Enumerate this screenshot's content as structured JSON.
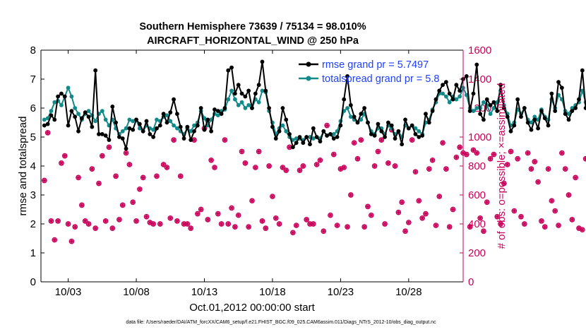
{
  "chart_data": {
    "type": "line",
    "title": "Southern Hemisphere 73639 / 75134 = 98.010%",
    "subtitle": "AIRCRAFT_HORIZONTAL_WIND @ 250 hPa",
    "xlabel": "Oct.01,2012 00:00:00 start",
    "ylabel": "rmse and totalspread",
    "y2label": "# of obs: o=possible; ×=assimilated",
    "footnote": "data file: /Users/raeder/DAI/ATM_forcXX/CAM6_setup/f.e21.FHIST_BGC.f09_025.CAM6assim.011/Diags_NTrS_2012-10/obs_diag_output.nc",
    "xlim": [
      1.0,
      32.0
    ],
    "ylim": [
      0,
      8
    ],
    "y2lim": [
      0,
      1600
    ],
    "x_ticks": [
      3,
      8,
      13,
      18,
      23,
      28
    ],
    "x_tick_labels": [
      "10/03",
      "10/08",
      "10/13",
      "10/18",
      "10/23",
      "10/28"
    ],
    "y_ticks": [
      0,
      1,
      2,
      3,
      4,
      5,
      6,
      7,
      8
    ],
    "y_tick_labels": [
      "0",
      "1",
      "2",
      "3",
      "4",
      "5",
      "6",
      "7",
      "8"
    ],
    "y2_ticks": [
      0,
      200,
      400,
      600,
      800,
      1000,
      1200,
      1400,
      1600
    ],
    "y2_tick_labels": [
      "0",
      "200",
      "400",
      "600",
      "800",
      "1000",
      "1200",
      "1400",
      "1600"
    ],
    "legend": {
      "placement": "top-right",
      "entries": [
        "rmse grand pr = 5.7497",
        "totalspread grand pr = 5.8"
      ]
    },
    "colors": {
      "rmse": "#000000",
      "totalspread": "#138a8a",
      "obs": "#c8005a",
      "legend_text": "#1f3fff"
    },
    "x_start": 1.25,
    "x_step": 0.25,
    "series": [
      {
        "name": "rmse",
        "values": [
          5.4,
          5.45,
          5.75,
          5.6,
          6.4,
          6.5,
          6.4,
          5.4,
          5.9,
          5.7,
          5.2,
          5.65,
          5.85,
          5.7,
          5.35,
          7.3,
          5.1,
          5.1,
          5.05,
          4.9,
          6.05,
          5.5,
          5.0,
          4.95,
          4.6,
          5.3,
          5.25,
          5.6,
          5.45,
          5.2,
          5.55,
          5.1,
          5.0,
          5.3,
          5.4,
          5.8,
          5.5,
          5.85,
          6.3,
          5.8,
          5.35,
          4.95,
          5.35,
          4.9,
          5.2,
          5.4,
          6.0,
          5.25,
          5.6,
          5.2,
          5.95,
          5.9,
          5.8,
          6.0,
          7.3,
          7.4,
          6.5,
          6.8,
          6.5,
          6.4,
          6.6,
          6.0,
          6.5,
          6.8,
          7.6,
          6.6,
          6.0,
          5.35,
          4.95,
          5.2,
          6.0,
          5.6,
          5.1,
          4.65,
          4.8,
          5.0,
          4.8,
          5.0,
          4.75,
          5.3,
          5.0,
          4.85,
          5.2,
          5.05,
          5.1,
          4.95,
          5.0,
          5.4,
          6.3,
          7.1,
          6.1,
          5.7,
          5.5,
          5.8,
          6.0,
          5.5,
          5.1,
          5.05,
          5.45,
          5.2,
          5.0,
          5.5,
          5.4,
          4.95,
          5.2,
          4.75,
          5.6,
          5.3,
          5.4,
          5.1,
          5.0,
          5.05,
          5.8,
          5.5,
          5.9,
          6.3,
          6.6,
          6.8,
          6.9,
          6.5,
          6.3,
          6.8,
          6.6,
          7.0,
          7.1,
          5.9,
          6.5,
          7.5,
          5.8,
          5.6,
          6.3,
          6.1,
          6.2,
          5.9,
          6.8,
          6.0,
          5.7,
          5.2,
          5.4,
          6.3,
          5.7,
          6.0,
          5.5,
          5.25,
          5.6,
          5.3,
          5.9,
          5.65,
          5.4,
          6.5,
          5.9,
          6.9,
          6.7,
          5.8,
          5.6,
          5.9,
          6.0,
          6.3,
          7.3,
          6.0,
          5.9,
          5.8,
          5.6,
          5.9,
          5.6,
          5.3,
          5.05,
          5.2,
          5.6,
          5.5,
          5.2,
          5.3,
          5.5,
          5.1,
          5.35,
          5.5,
          6.0,
          6.05,
          6.25
        ]
      },
      {
        "name": "totalspread",
        "values": [
          5.6,
          5.65,
          5.9,
          6.2,
          6.25,
          6.1,
          6.4,
          6.7,
          6.4,
          6.0,
          5.8,
          5.6,
          5.8,
          5.9,
          5.75,
          5.55,
          5.8,
          5.9,
          5.6,
          5.4,
          5.6,
          5.3,
          5.1,
          5.2,
          5.3,
          5.6,
          5.55,
          5.6,
          5.3,
          5.2,
          5.4,
          5.3,
          5.25,
          5.6,
          5.55,
          5.7,
          5.75,
          5.55,
          5.4,
          5.3,
          5.2,
          5.1,
          5.3,
          5.2,
          5.4,
          5.5,
          5.9,
          5.65,
          5.4,
          5.6,
          5.8,
          5.75,
          5.9,
          5.95,
          6.3,
          6.6,
          6.3,
          6.1,
          6.2,
          6.0,
          6.1,
          6.0,
          6.3,
          6.2,
          6.6,
          6.55,
          5.9,
          5.5,
          5.1,
          5.3,
          5.4,
          5.2,
          5.0,
          4.9,
          4.95,
          4.95,
          4.9,
          5.0,
          5.0,
          4.95,
          5.0,
          4.95,
          5.2,
          5.05,
          5.1,
          5.1,
          5.2,
          5.55,
          5.9,
          6.0,
          5.7,
          5.6,
          5.5,
          5.6,
          5.8,
          5.5,
          5.2,
          5.1,
          5.3,
          5.3,
          5.1,
          5.4,
          5.3,
          5.1,
          5.2,
          5.0,
          5.4,
          5.3,
          5.4,
          5.3,
          5.2,
          5.1,
          5.5,
          5.6,
          5.95,
          6.2,
          6.5,
          6.5,
          6.4,
          6.2,
          6.4,
          6.3,
          6.4,
          6.7,
          6.45,
          6.0,
          5.9,
          6.0,
          6.0,
          6.2,
          6.1,
          5.8,
          6.0,
          6.2,
          6.6,
          6.1,
          5.8,
          5.4,
          5.5,
          5.95,
          5.8,
          6.0,
          5.6,
          5.5,
          5.7,
          5.6,
          5.95,
          5.7,
          5.6,
          6.3,
          6.0,
          6.45,
          6.3,
          5.9,
          5.8,
          6.0,
          6.1,
          6.2,
          6.6,
          6.2,
          6.0,
          6.0,
          5.7,
          5.9,
          5.8,
          5.5,
          5.3,
          5.4,
          5.55,
          5.6,
          5.4,
          5.5,
          5.7,
          5.4,
          5.5,
          5.6,
          5.8,
          5.9,
          5.9
        ]
      }
    ],
    "obs_possible": [
      700,
      1030,
      420,
      290,
      420,
      820,
      870,
      400,
      280,
      380,
      720,
      530,
      420,
      400,
      780,
      370,
      680,
      870,
      420,
      930,
      370,
      730,
      430,
      530,
      890,
      810,
      550,
      420,
      640,
      720,
      450,
      410,
      400,
      730,
      400,
      810,
      790,
      440,
      980,
      420,
      730,
      400,
      400,
      370,
      980,
      470,
      500,
      1060,
      430,
      840,
      790,
      470,
      400,
      980,
      400,
      510,
      380,
      460,
      900,
      820,
      380,
      560,
      790,
      900,
      420,
      370,
      800,
      590,
      440,
      400,
      790,
      770,
      930,
      340,
      390,
      770,
      800,
      430,
      400,
      400,
      810,
      840,
      350,
      1080,
      460,
      880,
      390,
      780,
      790,
      380,
      600,
      960,
      850,
      980,
      380,
      520,
      460,
      800,
      900,
      980,
      400,
      820,
      1050,
      800,
      480,
      550,
      350,
      410,
      980,
      760,
      560,
      440,
      470,
      780,
      840,
      390,
      590,
      960,
      780,
      380,
      500,
      860,
      930,
      890,
      880,
      380,
      910,
      890,
      440,
      350,
      550,
      850,
      880,
      450,
      400,
      680,
      810,
      900,
      490,
      850,
      450,
      400,
      890,
      780,
      830,
      690,
      420,
      380,
      780,
      560,
      490,
      390,
      890,
      780,
      600,
      430,
      720,
      370,
      360,
      850,
      960,
      850,
      870,
      380,
      620,
      1020,
      980,
      830,
      420,
      400,
      590,
      810,
      720,
      400,
      780,
      350,
      250,
      810,
      520,
      420,
      460,
      400,
      400,
      0
    ]
  }
}
